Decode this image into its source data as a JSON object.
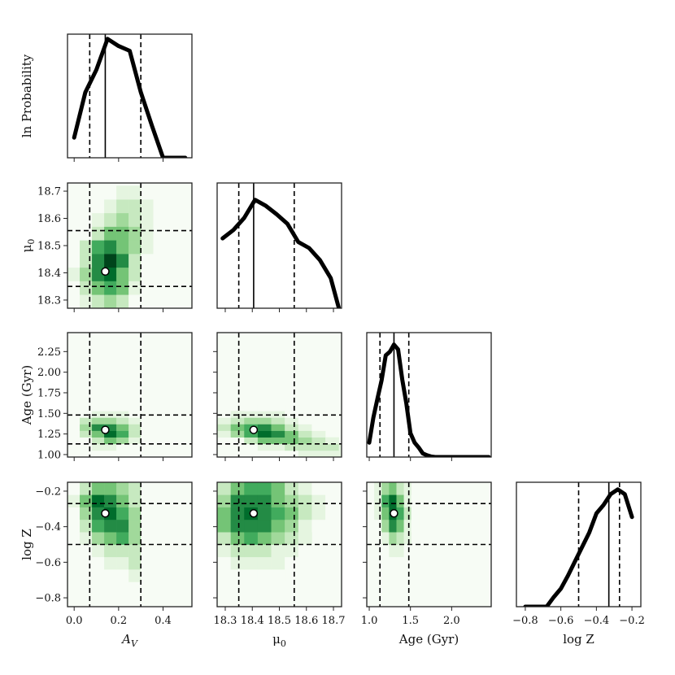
{
  "figure": {
    "style": {
      "line_color": "#000000",
      "best_line_color": "#000000",
      "frame_color": "#222222",
      "marker_fill": "#ffffff",
      "marker_stroke": "#000000",
      "cmap": [
        "#f7fcf5",
        "#e5f5e0",
        "#c7e9c0",
        "#a1d99b",
        "#74c476",
        "#41ab5d",
        "#238b45",
        "#006d2c",
        "#00441b"
      ]
    }
  },
  "chart_data": [
    {
      "id": "marg-av",
      "type": "line",
      "var": "AV",
      "xlim": [
        -0.03,
        0.53
      ],
      "ylim": [
        0,
        1.04
      ],
      "x": [
        0.0,
        0.05,
        0.1,
        0.15,
        0.2,
        0.25,
        0.3,
        0.35,
        0.4,
        0.45,
        0.5
      ],
      "y": [
        0.17,
        0.55,
        0.74,
        1.0,
        0.94,
        0.9,
        0.55,
        0.27,
        0.0,
        0.0,
        0.0
      ],
      "best": 0.14,
      "lo": 0.07,
      "hi": 0.3,
      "ylabel": "ln  Probability"
    },
    {
      "id": "marg-mu",
      "type": "line",
      "var": "mu",
      "xlim": [
        18.27,
        18.73
      ],
      "ylim": [
        0,
        1.04
      ],
      "x": [
        18.29,
        18.33,
        18.37,
        18.41,
        18.45,
        18.49,
        18.53,
        18.57,
        18.61,
        18.65,
        18.69,
        18.72
      ],
      "y": [
        0.58,
        0.65,
        0.75,
        0.9,
        0.85,
        0.78,
        0.7,
        0.55,
        0.5,
        0.4,
        0.25,
        0.0
      ],
      "best": 18.405,
      "lo": 18.35,
      "hi": 18.555
    },
    {
      "id": "marg-age",
      "type": "line",
      "var": "age",
      "xlim": [
        0.97,
        2.48
      ],
      "ylim": [
        0,
        1.04
      ],
      "x": [
        1.0,
        1.05,
        1.1,
        1.15,
        1.2,
        1.25,
        1.3,
        1.35,
        1.4,
        1.45,
        1.5,
        1.55,
        1.6,
        1.65,
        1.7,
        1.75,
        1.8,
        2.0,
        2.2,
        2.45
      ],
      "y": [
        0.12,
        0.33,
        0.49,
        0.64,
        0.85,
        0.88,
        0.94,
        0.9,
        0.65,
        0.45,
        0.2,
        0.12,
        0.08,
        0.03,
        0.015,
        0.005,
        0.0,
        0.0,
        0.0,
        0.0
      ],
      "best": 1.3,
      "lo": 1.13,
      "hi": 1.48
    },
    {
      "id": "marg-z",
      "type": "line",
      "var": "Z",
      "xlim": [
        -0.85,
        -0.15
      ],
      "ylim": [
        0,
        1.04
      ],
      "x": [
        -0.8,
        -0.76,
        -0.72,
        -0.68,
        -0.64,
        -0.6,
        -0.56,
        -0.52,
        -0.48,
        -0.44,
        -0.4,
        -0.36,
        -0.32,
        -0.28,
        -0.24,
        -0.2
      ],
      "y": [
        0.0,
        0.0,
        0.0,
        0.0,
        0.08,
        0.15,
        0.26,
        0.38,
        0.5,
        0.62,
        0.78,
        0.85,
        0.94,
        0.98,
        0.94,
        0.75
      ],
      "best": -0.33,
      "lo": -0.5,
      "hi": -0.27
    },
    {
      "id": "joint-av-mu",
      "type": "heatmap",
      "xvar": "AV",
      "yvar": "mu",
      "xlim": [
        -0.03,
        0.53
      ],
      "ylim": [
        18.27,
        18.73
      ],
      "x_edges": [
        -0.03,
        0.025,
        0.08,
        0.135,
        0.19,
        0.245,
        0.3,
        0.355,
        0.41,
        0.465,
        0.53
      ],
      "y_edges": [
        18.27,
        18.32,
        18.37,
        18.42,
        18.47,
        18.52,
        18.57,
        18.62,
        18.67,
        18.72,
        18.73
      ],
      "z": [
        [
          0.02,
          0.1,
          0.3,
          0.4,
          0.2,
          0.05,
          0.01,
          0.0,
          0.0,
          0.0
        ],
        [
          0.05,
          0.25,
          0.55,
          0.6,
          0.45,
          0.15,
          0.02,
          0.0,
          0.0,
          0.0
        ],
        [
          0.08,
          0.4,
          0.8,
          0.85,
          0.55,
          0.2,
          0.03,
          0.0,
          0.0,
          0.0
        ],
        [
          0.04,
          0.3,
          0.75,
          0.95,
          0.7,
          0.3,
          0.05,
          0.0,
          0.0,
          0.0
        ],
        [
          0.02,
          0.2,
          0.6,
          0.7,
          0.55,
          0.35,
          0.1,
          0.0,
          0.0,
          0.0
        ],
        [
          0.0,
          0.05,
          0.25,
          0.45,
          0.45,
          0.35,
          0.15,
          0.0,
          0.0,
          0.0
        ],
        [
          0.0,
          0.02,
          0.1,
          0.25,
          0.35,
          0.3,
          0.15,
          0.0,
          0.0,
          0.0
        ],
        [
          0.0,
          0.0,
          0.05,
          0.15,
          0.2,
          0.2,
          0.1,
          0.0,
          0.0,
          0.0
        ],
        [
          0.0,
          0.0,
          0.02,
          0.05,
          0.08,
          0.08,
          0.04,
          0.0,
          0.0,
          0.0
        ],
        [
          0.0,
          0.0,
          0.0,
          0.0,
          0.0,
          0.0,
          0.0,
          0.0,
          0.0,
          0.0
        ]
      ],
      "best": [
        0.14,
        18.405
      ],
      "lines_x": [
        0.07,
        0.3
      ],
      "lines_y": [
        18.35,
        18.555
      ],
      "ylabel": "μ0"
    },
    {
      "id": "joint-av-age",
      "type": "heatmap",
      "xvar": "AV",
      "yvar": "age",
      "xlim": [
        -0.03,
        0.53
      ],
      "ylim": [
        0.97,
        2.48
      ],
      "x_edges": [
        -0.03,
        0.025,
        0.08,
        0.135,
        0.19,
        0.245,
        0.3,
        0.355,
        0.41,
        0.465,
        0.53
      ],
      "y_edges": [
        0.97,
        1.05,
        1.13,
        1.21,
        1.29,
        1.37,
        1.45,
        1.53,
        1.61,
        1.69,
        2.48
      ],
      "z": [
        [
          0.0,
          0.0,
          0.0,
          0.0,
          0.0,
          0.0,
          0.0,
          0.0,
          0.0,
          0.0
        ],
        [
          0.0,
          0.05,
          0.1,
          0.1,
          0.05,
          0.02,
          0.0,
          0.0,
          0.0,
          0.0
        ],
        [
          0.0,
          0.05,
          0.25,
          0.45,
          0.35,
          0.15,
          0.02,
          0.0,
          0.0,
          0.0
        ],
        [
          0.02,
          0.2,
          0.55,
          0.85,
          0.6,
          0.3,
          0.05,
          0.0,
          0.0,
          0.0
        ],
        [
          0.05,
          0.35,
          0.7,
          0.8,
          0.55,
          0.25,
          0.05,
          0.0,
          0.0,
          0.0
        ],
        [
          0.03,
          0.2,
          0.35,
          0.4,
          0.3,
          0.12,
          0.02,
          0.0,
          0.0,
          0.0
        ],
        [
          0.0,
          0.05,
          0.15,
          0.15,
          0.08,
          0.03,
          0.0,
          0.0,
          0.0,
          0.0
        ],
        [
          0.0,
          0.0,
          0.03,
          0.05,
          0.02,
          0.0,
          0.0,
          0.0,
          0.0,
          0.0
        ],
        [
          0.0,
          0.0,
          0.0,
          0.0,
          0.0,
          0.0,
          0.0,
          0.0,
          0.0,
          0.0
        ],
        [
          0.0,
          0.0,
          0.0,
          0.0,
          0.0,
          0.0,
          0.0,
          0.0,
          0.0,
          0.0
        ]
      ],
      "best": [
        0.14,
        1.3
      ],
      "lines_x": [
        0.07,
        0.3
      ],
      "lines_y": [
        1.13,
        1.48
      ],
      "ylabel": "Age (Gyr)"
    },
    {
      "id": "joint-mu-age",
      "type": "heatmap",
      "xvar": "mu",
      "yvar": "age",
      "xlim": [
        18.27,
        18.73
      ],
      "ylim": [
        0.97,
        2.48
      ],
      "x_edges": [
        18.27,
        18.32,
        18.37,
        18.42,
        18.47,
        18.52,
        18.57,
        18.62,
        18.67,
        18.72,
        18.73
      ],
      "y_edges": [
        0.97,
        1.05,
        1.13,
        1.21,
        1.29,
        1.37,
        1.45,
        1.53,
        1.61,
        1.69,
        2.48
      ],
      "z": [
        [
          0.0,
          0.0,
          0.0,
          0.0,
          0.0,
          0.05,
          0.1,
          0.15,
          0.15,
          0.1
        ],
        [
          0.0,
          0.02,
          0.05,
          0.1,
          0.15,
          0.25,
          0.3,
          0.3,
          0.2,
          0.08
        ],
        [
          0.0,
          0.05,
          0.2,
          0.45,
          0.5,
          0.45,
          0.35,
          0.2,
          0.08,
          0.0
        ],
        [
          0.1,
          0.35,
          0.65,
          0.9,
          0.7,
          0.45,
          0.25,
          0.08,
          0.0,
          0.0
        ],
        [
          0.2,
          0.45,
          0.65,
          0.7,
          0.5,
          0.3,
          0.1,
          0.02,
          0.0,
          0.0
        ],
        [
          0.1,
          0.25,
          0.35,
          0.35,
          0.25,
          0.12,
          0.03,
          0.0,
          0.0,
          0.0
        ],
        [
          0.02,
          0.08,
          0.12,
          0.12,
          0.08,
          0.03,
          0.0,
          0.0,
          0.0,
          0.0
        ],
        [
          0.0,
          0.0,
          0.02,
          0.03,
          0.02,
          0.0,
          0.0,
          0.0,
          0.0,
          0.0
        ],
        [
          0.0,
          0.0,
          0.0,
          0.0,
          0.0,
          0.0,
          0.0,
          0.0,
          0.0,
          0.0
        ],
        [
          0.0,
          0.0,
          0.0,
          0.0,
          0.0,
          0.0,
          0.0,
          0.0,
          0.0,
          0.0
        ]
      ],
      "best": [
        18.405,
        1.3
      ],
      "lines_x": [
        18.35,
        18.555
      ],
      "lines_y": [
        1.13,
        1.48
      ]
    },
    {
      "id": "joint-av-z",
      "type": "heatmap",
      "xvar": "AV",
      "yvar": "Z",
      "xlim": [
        -0.03,
        0.53
      ],
      "ylim": [
        -0.85,
        -0.15
      ],
      "x_edges": [
        -0.03,
        0.025,
        0.08,
        0.135,
        0.19,
        0.245,
        0.3,
        0.355,
        0.41,
        0.465,
        0.53
      ],
      "y_edges": [
        -0.85,
        -0.78,
        -0.71,
        -0.64,
        -0.57,
        -0.5,
        -0.43,
        -0.36,
        -0.29,
        -0.22,
        -0.15
      ],
      "z": [
        [
          0.0,
          0.0,
          0.0,
          0.0,
          0.0,
          0.0,
          0.0,
          0.0,
          0.0,
          0.0
        ],
        [
          0.0,
          0.0,
          0.0,
          0.0,
          0.0,
          0.0,
          0.0,
          0.0,
          0.0,
          0.0
        ],
        [
          0.0,
          0.0,
          0.02,
          0.05,
          0.05,
          0.08,
          0.02,
          0.0,
          0.0,
          0.0
        ],
        [
          0.0,
          0.0,
          0.05,
          0.12,
          0.15,
          0.2,
          0.05,
          0.0,
          0.0,
          0.0
        ],
        [
          0.0,
          0.05,
          0.15,
          0.3,
          0.3,
          0.25,
          0.05,
          0.0,
          0.0,
          0.0
        ],
        [
          0.0,
          0.1,
          0.35,
          0.55,
          0.6,
          0.35,
          0.05,
          0.0,
          0.0,
          0.0
        ],
        [
          0.02,
          0.25,
          0.6,
          0.8,
          0.75,
          0.4,
          0.05,
          0.0,
          0.0,
          0.0
        ],
        [
          0.05,
          0.4,
          0.75,
          0.9,
          0.65,
          0.35,
          0.05,
          0.0,
          0.0,
          0.0
        ],
        [
          0.08,
          0.45,
          0.85,
          0.7,
          0.5,
          0.3,
          0.03,
          0.0,
          0.0,
          0.0
        ],
        [
          0.05,
          0.3,
          0.55,
          0.55,
          0.4,
          0.2,
          0.02,
          0.0,
          0.0,
          0.0
        ]
      ],
      "best": [
        0.14,
        -0.325
      ],
      "lines_x": [
        0.07,
        0.3
      ],
      "lines_y": [
        -0.5,
        -0.27
      ],
      "ylabel": "log  Z"
    },
    {
      "id": "joint-mu-z",
      "type": "heatmap",
      "xvar": "mu",
      "yvar": "Z",
      "xlim": [
        18.27,
        18.73
      ],
      "ylim": [
        -0.85,
        -0.15
      ],
      "x_edges": [
        18.27,
        18.32,
        18.37,
        18.42,
        18.47,
        18.52,
        18.57,
        18.62,
        18.67,
        18.72,
        18.73
      ],
      "y_edges": [
        -0.85,
        -0.78,
        -0.71,
        -0.64,
        -0.57,
        -0.5,
        -0.43,
        -0.36,
        -0.29,
        -0.22,
        -0.15
      ],
      "z": [
        [
          0.0,
          0.0,
          0.0,
          0.0,
          0.0,
          0.0,
          0.0,
          0.0,
          0.0,
          0.0
        ],
        [
          0.0,
          0.0,
          0.0,
          0.0,
          0.0,
          0.0,
          0.0,
          0.0,
          0.0,
          0.0
        ],
        [
          0.02,
          0.05,
          0.05,
          0.05,
          0.03,
          0.0,
          0.0,
          0.0,
          0.0,
          0.0
        ],
        [
          0.05,
          0.15,
          0.15,
          0.12,
          0.08,
          0.03,
          0.0,
          0.0,
          0.0,
          0.0
        ],
        [
          0.15,
          0.25,
          0.3,
          0.25,
          0.15,
          0.08,
          0.02,
          0.0,
          0.0,
          0.0
        ],
        [
          0.3,
          0.55,
          0.6,
          0.5,
          0.35,
          0.2,
          0.08,
          0.0,
          0.0,
          0.0
        ],
        [
          0.45,
          0.7,
          0.8,
          0.7,
          0.55,
          0.35,
          0.15,
          0.05,
          0.0,
          0.0
        ],
        [
          0.5,
          0.8,
          0.9,
          0.8,
          0.65,
          0.45,
          0.3,
          0.15,
          0.05,
          0.0
        ],
        [
          0.4,
          0.7,
          0.8,
          0.75,
          0.55,
          0.4,
          0.25,
          0.15,
          0.05,
          0.0
        ],
        [
          0.25,
          0.55,
          0.65,
          0.6,
          0.45,
          0.3,
          0.15,
          0.05,
          0.02,
          0.0
        ]
      ],
      "best": [
        18.405,
        -0.325
      ],
      "lines_x": [
        18.35,
        18.555
      ],
      "lines_y": [
        -0.5,
        -0.27
      ]
    },
    {
      "id": "joint-age-z",
      "type": "heatmap",
      "xvar": "age",
      "yvar": "Z",
      "xlim": [
        0.97,
        2.48
      ],
      "ylim": [
        -0.85,
        -0.15
      ],
      "x_edges": [
        0.97,
        1.06,
        1.15,
        1.24,
        1.33,
        1.42,
        1.51,
        1.6,
        1.69,
        1.78,
        2.48
      ],
      "y_edges": [
        -0.85,
        -0.78,
        -0.71,
        -0.64,
        -0.57,
        -0.5,
        -0.43,
        -0.36,
        -0.29,
        -0.22,
        -0.15
      ],
      "z": [
        [
          0.0,
          0.0,
          0.0,
          0.0,
          0.0,
          0.0,
          0.0,
          0.0,
          0.0,
          0.0
        ],
        [
          0.0,
          0.0,
          0.0,
          0.0,
          0.0,
          0.0,
          0.0,
          0.0,
          0.0,
          0.0
        ],
        [
          0.0,
          0.0,
          0.0,
          0.02,
          0.02,
          0.0,
          0.0,
          0.0,
          0.0,
          0.0
        ],
        [
          0.0,
          0.0,
          0.02,
          0.05,
          0.05,
          0.02,
          0.0,
          0.0,
          0.0,
          0.0
        ],
        [
          0.0,
          0.0,
          0.05,
          0.12,
          0.12,
          0.05,
          0.0,
          0.0,
          0.0,
          0.0
        ],
        [
          0.0,
          0.02,
          0.15,
          0.35,
          0.3,
          0.1,
          0.0,
          0.0,
          0.0,
          0.0
        ],
        [
          0.0,
          0.05,
          0.35,
          0.7,
          0.55,
          0.15,
          0.02,
          0.0,
          0.0,
          0.0
        ],
        [
          0.02,
          0.1,
          0.55,
          0.9,
          0.65,
          0.2,
          0.02,
          0.0,
          0.0,
          0.0
        ],
        [
          0.02,
          0.15,
          0.6,
          0.85,
          0.5,
          0.15,
          0.02,
          0.0,
          0.0,
          0.0
        ],
        [
          0.02,
          0.1,
          0.4,
          0.55,
          0.3,
          0.08,
          0.0,
          0.0,
          0.0,
          0.0
        ]
      ],
      "best": [
        1.3,
        -0.325
      ],
      "lines_x": [
        1.13,
        1.48
      ],
      "lines_y": [
        -0.5,
        -0.27
      ]
    }
  ],
  "axes": {
    "AV": {
      "label": "A",
      "label_sub": "V",
      "ticks": [
        0.0,
        0.2,
        0.4
      ],
      "tick_labels": [
        "0.0",
        "0.2",
        "0.4"
      ]
    },
    "mu": {
      "label": "μ",
      "label_sub": "0",
      "ticks": [
        18.3,
        18.4,
        18.5,
        18.6,
        18.7
      ],
      "tick_labels": [
        "18.3",
        "18.4",
        "18.5",
        "18.6",
        "18.7"
      ]
    },
    "age": {
      "label": "Age (Gyr)",
      "ticks": [
        1.0,
        1.5,
        2.0
      ],
      "tick_labels": [
        "1.0",
        "1.5",
        "2.0"
      ],
      "yticks": [
        1.0,
        1.25,
        1.5,
        1.75,
        2.0,
        2.25
      ],
      "ytick_labels": [
        "1.00",
        "1.25",
        "1.50",
        "1.75",
        "2.00",
        "2.25"
      ]
    },
    "Z": {
      "label": "log  Z",
      "ticks": [
        -0.8,
        -0.6,
        -0.4,
        -0.2
      ],
      "tick_labels": [
        "−0.8",
        "−0.6",
        "−0.4",
        "−0.2"
      ],
      "yticks": [
        -0.8,
        -0.6,
        -0.4,
        -0.2
      ],
      "ytick_labels": [
        "−0.8",
        "−0.6",
        "−0.4",
        "−0.2"
      ]
    }
  },
  "extra_ticks": {
    "mu_y": {
      "ticks": [
        18.3,
        18.4,
        18.5,
        18.6,
        18.7
      ],
      "labels": [
        "18.3",
        "18.4",
        "18.5",
        "18.6",
        "18.7"
      ]
    }
  }
}
